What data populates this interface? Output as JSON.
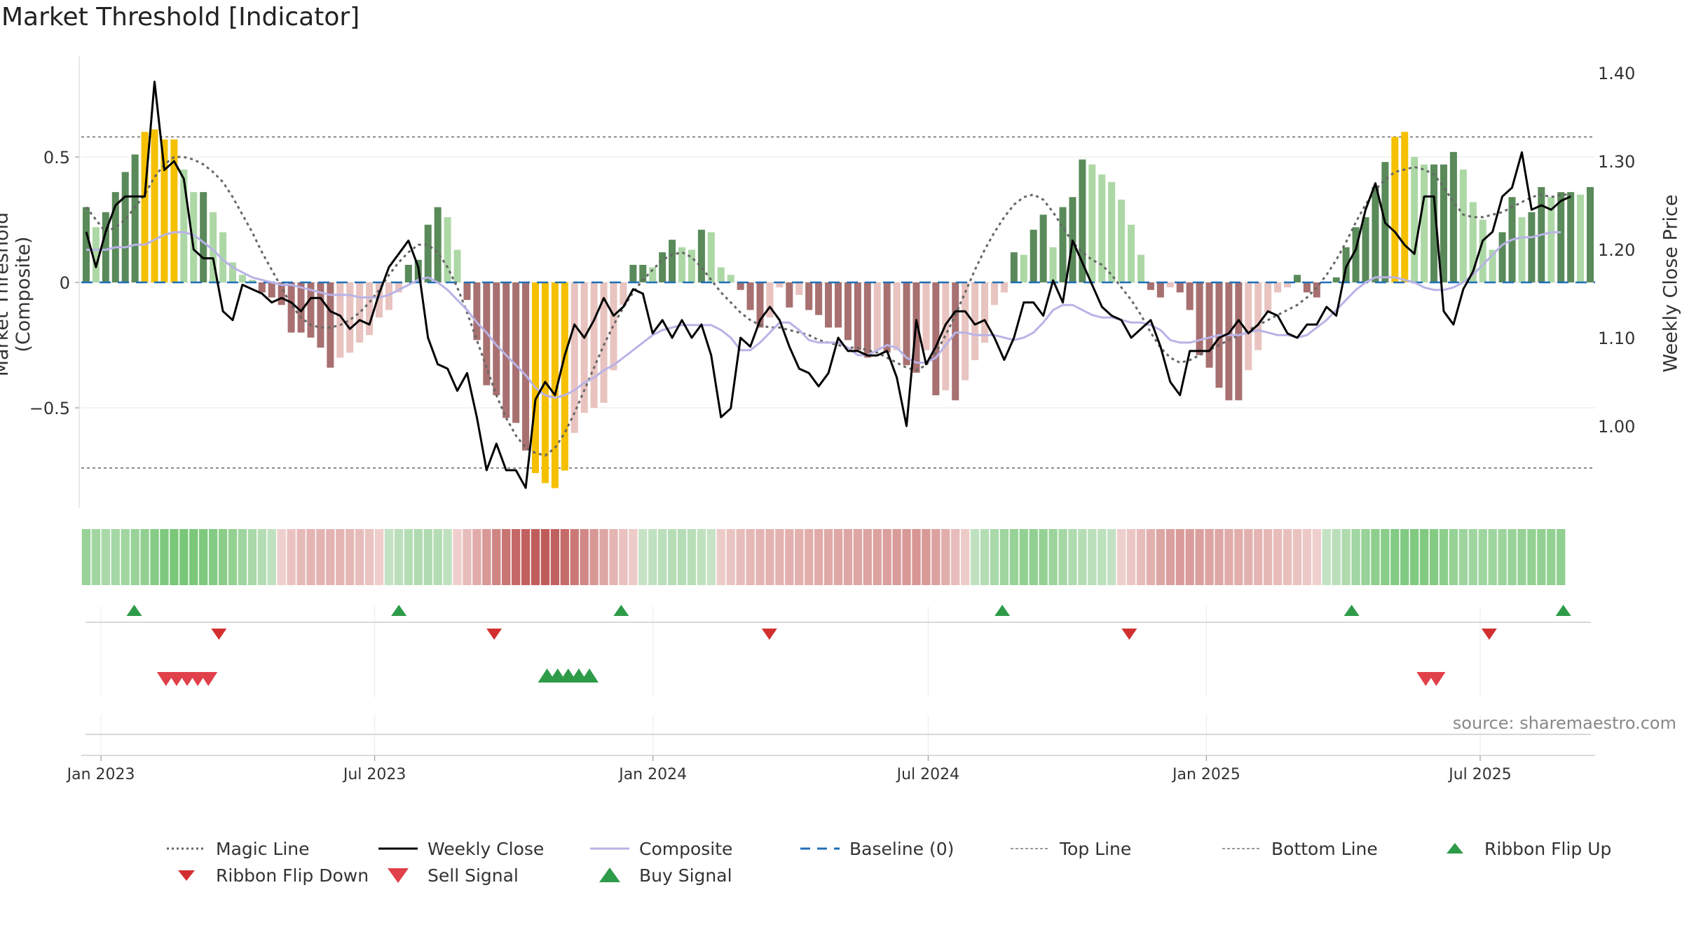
{
  "title": "Market Threshold [Indicator]",
  "source": "source: sharemaestro.com",
  "axes": {
    "left_label": "Market Threshold (Composite)",
    "right_label": "Weekly Close Price",
    "left_ticks": [
      "0.5",
      "0",
      "−0.5"
    ],
    "right_ticks": [
      "1.40",
      "1.30",
      "1.20",
      "1.10",
      "1.00"
    ],
    "x_ticks": [
      "Jan 2023",
      "Jul 2023",
      "Jan 2024",
      "Jul 2024",
      "Jan 2025",
      "Jul 2025"
    ]
  },
  "legend": [
    {
      "label": "Magic Line",
      "symbol": "dotted-line",
      "color": "#666666"
    },
    {
      "label": "Weekly Close",
      "symbol": "solid-line",
      "color": "#000000"
    },
    {
      "label": "Composite",
      "symbol": "solid-line",
      "color": "#b9b3e6"
    },
    {
      "label": "Baseline (0)",
      "symbol": "dashed-line",
      "color": "#1f6fb5"
    },
    {
      "label": "Top Line",
      "symbol": "dotted-line",
      "color": "#999999"
    },
    {
      "label": "Bottom Line",
      "symbol": "dotted-line",
      "color": "#999999"
    },
    {
      "label": "Ribbon Flip Up",
      "symbol": "triangle-up",
      "color": "#2e9b49"
    },
    {
      "label": "Ribbon Flip Down",
      "symbol": "triangle-down",
      "color": "#d23030"
    },
    {
      "label": "Sell Signal",
      "symbol": "triangle-down",
      "color": "#e0404a"
    },
    {
      "label": "Buy Signal",
      "symbol": "triangle-up",
      "color": "#2e9b49"
    }
  ],
  "colors": {
    "strong_positive": "#5a8a5a",
    "weak_positive": "#add8a6",
    "strong_negative": "#a87070",
    "weak_negative": "#e8c3bf",
    "extreme": "#f5c000"
  },
  "chart_data": {
    "type": "bar",
    "x_range": [
      "2022-12-19",
      "2025-09-15"
    ],
    "ylim_left": [
      -0.9,
      0.9
    ],
    "ylim_right": [
      0.92,
      1.41
    ],
    "top_line": 0.58,
    "bottom_line": -0.74,
    "baseline": 0,
    "grid": true,
    "series": [
      {
        "name": "Weekly Close",
        "axis": "right",
        "values": [
          1.22,
          1.18,
          1.22,
          1.25,
          1.26,
          1.26,
          1.26,
          1.39,
          1.29,
          1.3,
          1.28,
          1.2,
          1.19,
          1.19,
          1.13,
          1.12,
          1.16,
          1.155,
          1.15,
          1.14,
          1.145,
          1.14,
          1.13,
          1.145,
          1.145,
          1.13,
          1.125,
          1.11,
          1.12,
          1.115,
          1.15,
          1.18,
          1.195,
          1.21,
          1.18,
          1.1,
          1.07,
          1.065,
          1.04,
          1.06,
          1.01,
          0.95,
          0.98,
          0.95,
          0.95,
          0.93,
          1.03,
          1.05,
          1.035,
          1.08,
          1.115,
          1.1,
          1.12,
          1.145,
          1.125,
          1.135,
          1.155,
          1.15,
          1.105,
          1.12,
          1.1,
          1.12,
          1.1,
          1.115,
          1.08,
          1.01,
          1.02,
          1.1,
          1.09,
          1.12,
          1.135,
          1.12,
          1.09,
          1.065,
          1.06,
          1.045,
          1.06,
          1.1,
          1.085,
          1.085,
          1.08,
          1.08,
          1.085,
          1.055,
          1.0,
          1.12,
          1.07,
          1.09,
          1.115,
          1.13,
          1.13,
          1.115,
          1.12,
          1.1,
          1.075,
          1.1,
          1.14,
          1.14,
          1.125,
          1.165,
          1.14,
          1.21,
          1.185,
          1.16,
          1.135,
          1.125,
          1.12,
          1.1,
          1.11,
          1.12,
          1.09,
          1.05,
          1.035,
          1.085,
          1.085,
          1.085,
          1.1,
          1.105,
          1.12,
          1.105,
          1.115,
          1.13,
          1.125,
          1.105,
          1.1,
          1.115,
          1.115,
          1.135,
          1.125,
          1.18,
          1.2,
          1.245,
          1.275,
          1.23,
          1.22,
          1.205,
          1.195,
          1.26,
          1.26,
          1.13,
          1.115,
          1.155,
          1.175,
          1.21,
          1.22,
          1.26,
          1.27,
          1.31,
          1.245,
          1.25,
          1.245,
          1.255,
          1.26
        ]
      },
      {
        "name": "Composite",
        "axis": "left",
        "values": [
          0.13,
          0.13,
          0.13,
          0.14,
          0.14,
          0.15,
          0.15,
          0.17,
          0.19,
          0.2,
          0.2,
          0.19,
          0.16,
          0.13,
          0.09,
          0.06,
          0.04,
          0.02,
          0.01,
          0.0,
          -0.01,
          -0.01,
          -0.02,
          -0.03,
          -0.04,
          -0.05,
          -0.05,
          -0.05,
          -0.06,
          -0.06,
          -0.06,
          -0.05,
          -0.03,
          -0.01,
          0.01,
          0.02,
          0.0,
          -0.03,
          -0.07,
          -0.11,
          -0.16,
          -0.2,
          -0.25,
          -0.29,
          -0.33,
          -0.37,
          -0.42,
          -0.45,
          -0.46,
          -0.45,
          -0.43,
          -0.4,
          -0.38,
          -0.35,
          -0.33,
          -0.3,
          -0.27,
          -0.24,
          -0.21,
          -0.19,
          -0.18,
          -0.17,
          -0.17,
          -0.17,
          -0.17,
          -0.19,
          -0.22,
          -0.27,
          -0.27,
          -0.24,
          -0.2,
          -0.16,
          -0.16,
          -0.19,
          -0.23,
          -0.24,
          -0.24,
          -0.24,
          -0.26,
          -0.29,
          -0.29,
          -0.27,
          -0.25,
          -0.26,
          -0.3,
          -0.32,
          -0.32,
          -0.3,
          -0.25,
          -0.2,
          -0.2,
          -0.21,
          -0.21,
          -0.21,
          -0.22,
          -0.23,
          -0.22,
          -0.2,
          -0.16,
          -0.11,
          -0.09,
          -0.09,
          -0.11,
          -0.13,
          -0.14,
          -0.14,
          -0.15,
          -0.16,
          -0.16,
          -0.17,
          -0.19,
          -0.23,
          -0.24,
          -0.24,
          -0.23,
          -0.22,
          -0.21,
          -0.21,
          -0.21,
          -0.2,
          -0.19,
          -0.2,
          -0.21,
          -0.21,
          -0.22,
          -0.21,
          -0.18,
          -0.15,
          -0.11,
          -0.07,
          -0.03,
          0.0,
          0.02,
          0.02,
          0.02,
          0.01,
          0.0,
          -0.02,
          -0.03,
          -0.03,
          -0.02,
          0.0,
          0.03,
          0.07,
          0.11,
          0.15,
          0.17,
          0.18,
          0.18,
          0.19,
          0.2,
          0.2
        ]
      },
      {
        "name": "Magic Line",
        "axis": "left",
        "values": [
          0.3,
          0.25,
          0.2,
          0.22,
          0.25,
          0.3,
          0.35,
          0.42,
          0.47,
          0.5,
          0.5,
          0.49,
          0.47,
          0.44,
          0.4,
          0.34,
          0.27,
          0.2,
          0.12,
          0.05,
          -0.02,
          -0.09,
          -0.14,
          -0.17,
          -0.18,
          -0.18,
          -0.17,
          -0.15,
          -0.12,
          -0.08,
          -0.03,
          0.03,
          0.08,
          0.12,
          0.15,
          0.15,
          0.12,
          0.06,
          -0.02,
          -0.12,
          -0.23,
          -0.34,
          -0.45,
          -0.54,
          -0.61,
          -0.66,
          -0.68,
          -0.69,
          -0.66,
          -0.6,
          -0.52,
          -0.43,
          -0.34,
          -0.25,
          -0.17,
          -0.1,
          -0.04,
          0.01,
          0.05,
          0.09,
          0.11,
          0.12,
          0.1,
          0.06,
          0.01,
          -0.04,
          -0.08,
          -0.12,
          -0.15,
          -0.17,
          -0.18,
          -0.18,
          -0.19,
          -0.2,
          -0.21,
          -0.23,
          -0.24,
          -0.25,
          -0.26,
          -0.26,
          -0.27,
          -0.28,
          -0.3,
          -0.32,
          -0.34,
          -0.35,
          -0.33,
          -0.28,
          -0.21,
          -0.13,
          -0.04,
          0.05,
          0.13,
          0.2,
          0.26,
          0.31,
          0.34,
          0.35,
          0.33,
          0.28,
          0.22,
          0.16,
          0.12,
          0.09,
          0.07,
          0.03,
          -0.02,
          -0.07,
          -0.13,
          -0.2,
          -0.26,
          -0.3,
          -0.32,
          -0.31,
          -0.29,
          -0.27,
          -0.25,
          -0.23,
          -0.21,
          -0.19,
          -0.17,
          -0.15,
          -0.13,
          -0.11,
          -0.09,
          -0.06,
          -0.02,
          0.03,
          0.09,
          0.16,
          0.24,
          0.31,
          0.37,
          0.41,
          0.44,
          0.45,
          0.46,
          0.45,
          0.43,
          0.38,
          0.32,
          0.27,
          0.26,
          0.26,
          0.27,
          0.28,
          0.3,
          0.32,
          0.34,
          0.35,
          0.34,
          0.35,
          0.35
        ]
      },
      {
        "name": "Threshold bars",
        "axis": "left",
        "values": [
          0.3,
          0.22,
          0.28,
          0.36,
          0.44,
          0.51,
          0.6,
          0.61,
          0.57,
          0.57,
          0.45,
          0.36,
          0.36,
          0.28,
          0.2,
          0.08,
          0.03,
          0.01,
          -0.04,
          -0.06,
          -0.09,
          -0.2,
          -0.2,
          -0.22,
          -0.26,
          -0.34,
          -0.3,
          -0.28,
          -0.24,
          -0.21,
          -0.14,
          -0.11,
          -0.04,
          0.07,
          0.09,
          0.23,
          0.3,
          0.26,
          0.13,
          -0.07,
          -0.23,
          -0.41,
          -0.45,
          -0.54,
          -0.56,
          -0.67,
          -0.76,
          -0.8,
          -0.82,
          -0.75,
          -0.6,
          -0.52,
          -0.5,
          -0.48,
          -0.35,
          -0.09,
          0.07,
          0.07,
          0.06,
          0.12,
          0.17,
          0.14,
          0.13,
          0.21,
          0.2,
          0.06,
          0.03,
          -0.03,
          -0.11,
          -0.18,
          -0.14,
          -0.02,
          -0.1,
          -0.05,
          -0.11,
          -0.13,
          -0.18,
          -0.18,
          -0.23,
          -0.27,
          -0.3,
          -0.27,
          -0.28,
          -0.27,
          -0.33,
          -0.36,
          -0.27,
          -0.45,
          -0.43,
          -0.47,
          -0.39,
          -0.31,
          -0.24,
          -0.09,
          -0.04,
          0.12,
          0.11,
          0.21,
          0.27,
          0.14,
          0.3,
          0.34,
          0.49,
          0.47,
          0.43,
          0.4,
          0.33,
          0.23,
          0.11,
          -0.03,
          -0.06,
          -0.02,
          -0.04,
          -0.11,
          -0.29,
          -0.34,
          -0.42,
          -0.47,
          -0.47,
          -0.35,
          -0.27,
          -0.12,
          -0.04,
          -0.02,
          0.03,
          -0.04,
          -0.06,
          0.0,
          0.02,
          0.14,
          0.22,
          0.26,
          0.38,
          0.48,
          0.58,
          0.6,
          0.5,
          0.47,
          0.47,
          0.47,
          0.52,
          0.45,
          0.32,
          0.25,
          0.13,
          0.2,
          0.34,
          0.26,
          0.28,
          0.38,
          0.34,
          0.36,
          0.36,
          0.35,
          0.38
        ]
      }
    ],
    "ribbon_flip_up": [
      "2023-01-23",
      "2023-07-17",
      "2023-12-11",
      "2024-08-19",
      "2025-04-07",
      "2025-08-25"
    ],
    "ribbon_flip_down": [
      "2023-03-20",
      "2023-09-18",
      "2024-03-18",
      "2024-11-11",
      "2025-07-07"
    ],
    "sell_signal": [
      "2023-02-13",
      "2023-02-20",
      "2023-02-27",
      "2023-03-06",
      "2023-03-13",
      "2025-05-26",
      "2025-06-02"
    ],
    "buy_signal": [
      "2023-10-23",
      "2023-10-30",
      "2023-11-06",
      "2023-11-13",
      "2023-11-20"
    ]
  }
}
